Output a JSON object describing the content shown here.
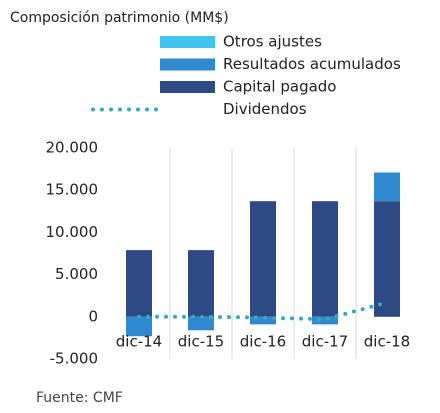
{
  "chart_data": {
    "type": "bar",
    "stacked": true,
    "title": "Composición patrimonio (MM$)",
    "source": "Fuente: CMF",
    "categories": [
      "dic-14",
      "dic-15",
      "dic-16",
      "dic-17",
      "dic-18"
    ],
    "series": [
      {
        "name": "Otros ajustes",
        "color": "#45c3ef",
        "values": [
          0,
          0,
          0,
          0,
          0
        ]
      },
      {
        "name": "Resultados acumulados",
        "color": "#2f8ad0",
        "values": [
          -2300,
          -1600,
          -900,
          -900,
          3400
        ]
      },
      {
        "name": "Capital pagado",
        "color": "#2e4a85",
        "values": [
          7900,
          7900,
          13700,
          13700,
          13700
        ]
      },
      {
        "name": "Dividendos",
        "type": "line",
        "color": "#36a9bd",
        "values": [
          0,
          0,
          -100,
          -300,
          1700
        ]
      }
    ],
    "ylim": [
      -5000,
      20000
    ],
    "yticks": [
      {
        "value": 20000,
        "label": "20.000"
      },
      {
        "value": 15000,
        "label": "15.000"
      },
      {
        "value": 10000,
        "label": "10.000"
      },
      {
        "value": 5000,
        "label": "5.000"
      },
      0,
      {
        "value": -5000,
        "label": "-5.000"
      }
    ],
    "grid": "vertical"
  }
}
